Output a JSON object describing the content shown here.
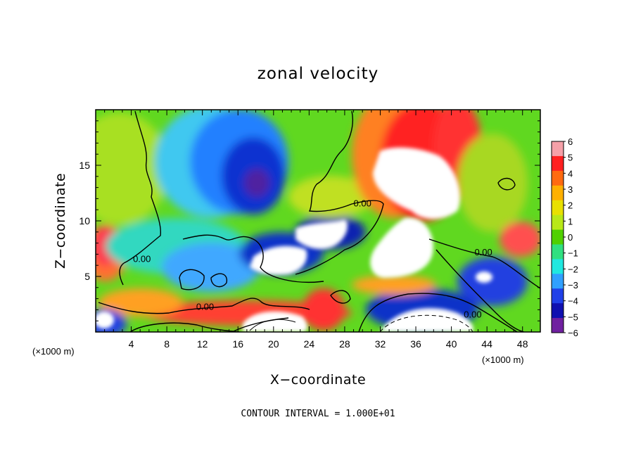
{
  "chart_data": {
    "type": "heatmap",
    "title": "zonal velocity",
    "xlabel": "X−coordinate",
    "ylabel": "Z−coordinate",
    "x_unit": "(×1000 m)",
    "x_unit_right": "(×1000 m)",
    "xlim": [
      0,
      50
    ],
    "ylim": [
      0,
      20
    ],
    "x_ticks": [
      4,
      8,
      12,
      16,
      20,
      24,
      28,
      32,
      36,
      40,
      44,
      48
    ],
    "y_ticks": [
      5,
      10,
      15
    ],
    "colorbar": {
      "ticks": [
        6,
        5,
        4,
        3,
        2,
        1,
        0,
        -1,
        -2,
        -3,
        -4,
        -5,
        -6
      ],
      "tick_labels": [
        "6",
        "5",
        "4",
        "3",
        "2",
        "1",
        "0",
        "−1",
        "−2",
        "−3",
        "−4",
        "−5",
        "−6"
      ],
      "range": [
        -6,
        6
      ],
      "colors": [
        "#f5a0a8",
        "#ff2020",
        "#ff6a10",
        "#ffb000",
        "#e8e000",
        "#b8e818",
        "#50d000",
        "#30e080",
        "#20e8e0",
        "#30a0ff",
        "#2040e8",
        "#1010b0",
        "#7020a0"
      ]
    },
    "contour_labels": [
      {
        "text": "0.00",
        "x": 5.2,
        "y": 6.3
      },
      {
        "text": "0.00",
        "x": 12.3,
        "y": 2.0
      },
      {
        "text": "0.00",
        "x": 30.0,
        "y": 11.3
      },
      {
        "text": "0.00",
        "x": 43.6,
        "y": 6.9
      },
      {
        "text": "0.00",
        "x": 42.4,
        "y": 1.3
      }
    ],
    "footer": "CONTOUR INTERVAL = 1.000E+01"
  }
}
